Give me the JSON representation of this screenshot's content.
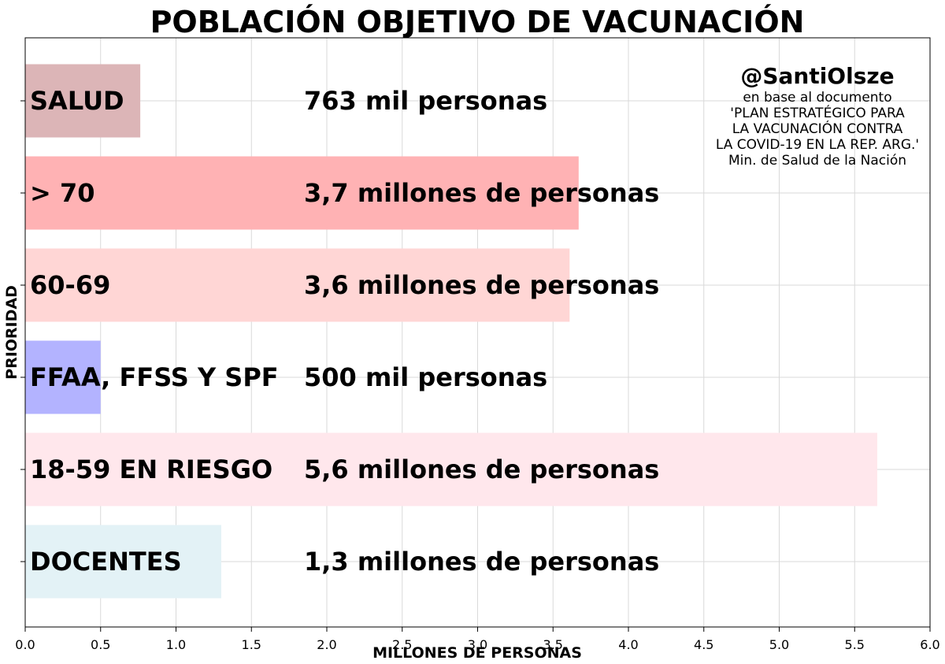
{
  "chart_data": {
    "type": "bar",
    "orientation": "horizontal",
    "title": "POBLACIÓN OBJETIVO DE VACUNACIÓN",
    "xlabel": "MILLONES DE PERSONAS",
    "ylabel": "PRIORIDAD",
    "xlim": [
      0,
      6
    ],
    "xticks": [
      "0.0",
      "0.5",
      "1.0",
      "1.5",
      "2.0",
      "2.5",
      "3.0",
      "3.5",
      "4.0",
      "4.5",
      "5.0",
      "5.5",
      "6.0"
    ],
    "grid": true,
    "categories": [
      "SALUD",
      "> 70",
      "60-69",
      "FFAA, FFSS Y SPF",
      "18-59 EN RIESGO",
      "DOCENTES"
    ],
    "values": [
      0.763,
      3.67,
      3.61,
      0.5,
      5.65,
      1.3
    ],
    "value_labels": [
      "763 mil personas",
      "3,7 millones de personas",
      "3,6 millones de personas",
      "500 mil personas",
      "5,6 millones de personas",
      "1,3 millones de personas"
    ],
    "colors": [
      "#dcb5b7",
      "#ffb2b4",
      "#ffd6d5",
      "#b3b3ff",
      "#ffe7ec",
      "#e3f2f6"
    ],
    "annotation": {
      "handle": "@SantiOlsze",
      "lines": [
        "en base al documento",
        "'PLAN ESTRATÉGICO PARA",
        "LA VACUNACIÓN CONTRA",
        "LA COVID-19 EN LA REP. ARG.'",
        "Min. de Salud de la Nación"
      ]
    }
  }
}
